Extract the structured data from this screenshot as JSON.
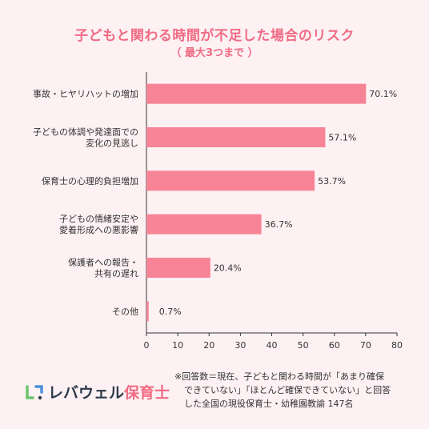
{
  "header": {
    "title": "子どもと関わる時間が不足した場合のリスク",
    "subtitle": "（ 最大3つまで ）"
  },
  "chart_data": {
    "type": "bar",
    "orientation": "horizontal",
    "categories": [
      [
        "事故・ヒヤリハットの増加"
      ],
      [
        "子どもの体調や発達面での",
        "変化の見逃し"
      ],
      [
        "保育士の心理的負担増加"
      ],
      [
        "子どもの情緒安定や",
        "愛着形成への悪影響"
      ],
      [
        "保護者への報告・",
        "共有の遅れ"
      ],
      [
        "その他"
      ]
    ],
    "values": [
      70.1,
      57.1,
      53.7,
      36.7,
      20.4,
      0.7
    ],
    "value_labels": [
      "70.1%",
      "57.1%",
      "53.7%",
      "36.7%",
      "20.4%",
      "0.7%"
    ],
    "xlim": [
      0,
      80
    ],
    "xticks": [
      "0",
      "10",
      "20",
      "30",
      "40",
      "50",
      "60",
      "70",
      "80"
    ],
    "grid": false,
    "bar_color": "#f78496"
  },
  "footer": {
    "logo_brand": "レバウェル",
    "logo_accent": "保育士",
    "note_lines": [
      "※回答数＝現在、子どもと関わる時間が「あまり確保",
      "できていない」「ほとんど確保できていない」と回答",
      "した全国の現役保育士・幼稚園教諭 147名"
    ]
  }
}
